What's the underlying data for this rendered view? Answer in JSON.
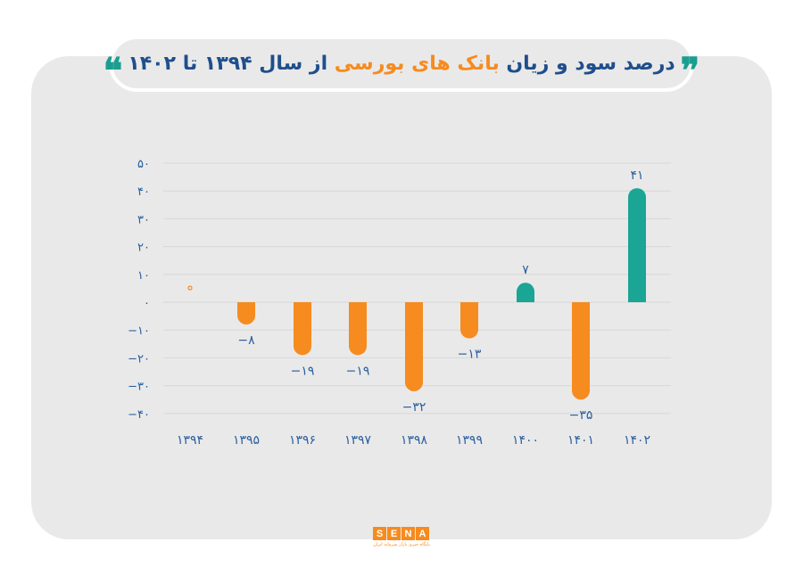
{
  "title": {
    "part1": "درصد سود و زیان",
    "highlight": "بانک های بورسی",
    "part2": "از سال ۱۳۹۴ تا ۱۴۰۲",
    "open_quote": "❞",
    "close_quote": "❝"
  },
  "colors": {
    "positive": "#1aa595",
    "negative": "#f68b1f",
    "zero_marker": "#f68b1f",
    "axis_text": "#2a5f9e",
    "grid": "#d8d8d8",
    "panel": "#e9e9e9",
    "title_blue": "#1f4e8c",
    "title_orange": "#f68b1f"
  },
  "logo": {
    "letters": [
      "S",
      "E",
      "N",
      "A"
    ],
    "tagline": "پایگاه خبری بازار سرمایه ایران"
  },
  "chart_data": {
    "type": "bar",
    "title": "درصد سود و زیان بانک های بورسی از سال ۱۳۹۴ تا ۱۴۰۲",
    "xlabel": "",
    "ylabel": "",
    "categories": [
      "۱۳۹۴",
      "۱۳۹۵",
      "۱۳۹۶",
      "۱۳۹۷",
      "۱۳۹۸",
      "۱۳۹۹",
      "۱۴۰۰",
      "۱۴۰۱",
      "۱۴۰۲"
    ],
    "categories_latin": [
      "1394",
      "1395",
      "1396",
      "1397",
      "1398",
      "1399",
      "1400",
      "1401",
      "1402"
    ],
    "values": [
      0,
      -8,
      -19,
      -19,
      -32,
      -13,
      7,
      -35,
      41
    ],
    "data_labels": [
      "۰",
      "−۸",
      "−۱۹",
      "−۱۹",
      "−۳۲",
      "−۱۳",
      "۷",
      "−۳۵",
      "۴۱"
    ],
    "show_label": [
      false,
      true,
      true,
      true,
      true,
      true,
      true,
      true,
      true
    ],
    "ylim": [
      -40,
      50
    ],
    "yticks": [
      50,
      40,
      30,
      20,
      10,
      0,
      -10,
      -20,
      -30,
      -40
    ],
    "ytick_labels": [
      "۵۰",
      "۴۰",
      "۳۰",
      "۲۰",
      "۱۰",
      "۰",
      "−۱۰",
      "−۲۰",
      "−۳۰",
      "−۴۰"
    ],
    "grid": true,
    "legend": null
  }
}
